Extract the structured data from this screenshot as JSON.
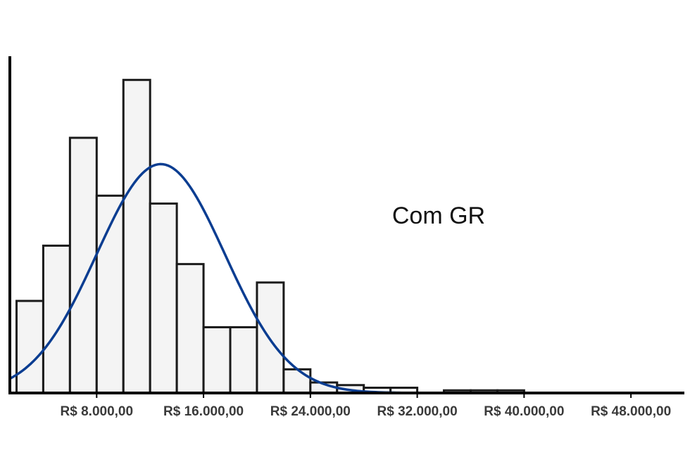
{
  "chart_data": {
    "type": "bar",
    "title": "",
    "xlabel": "",
    "ylabel": "",
    "annotation": "Com GR",
    "bin_width": 2000,
    "bin_start": 2000,
    "values": [
      35,
      56,
      97,
      75,
      119,
      72,
      49,
      25,
      25,
      42,
      9,
      4,
      3,
      2,
      2,
      0,
      1,
      1,
      1
    ],
    "xlim": [
      1500,
      52000
    ],
    "ylim": [
      0,
      128
    ],
    "x_ticks": [
      {
        "value": 8000,
        "label": "R$ 8.000,00"
      },
      {
        "value": 16000,
        "label": "R$ 16.000,00"
      },
      {
        "value": 24000,
        "label": "R$ 24.000,00"
      },
      {
        "value": 32000,
        "label": "R$ 32.000,00"
      },
      {
        "value": 40000,
        "label": "R$ 40.000,00"
      },
      {
        "value": 48000,
        "label": "R$ 48.000,00"
      }
    ],
    "fit_curve": {
      "type": "normal",
      "mean": 12800,
      "sd": 4800,
      "peak": 87
    },
    "grid": false,
    "colors": {
      "bar_fill": "#f4f4f4",
      "bar_stroke": "#1a1a1a",
      "curve": "#0b3d91",
      "axis": "#000000"
    }
  }
}
